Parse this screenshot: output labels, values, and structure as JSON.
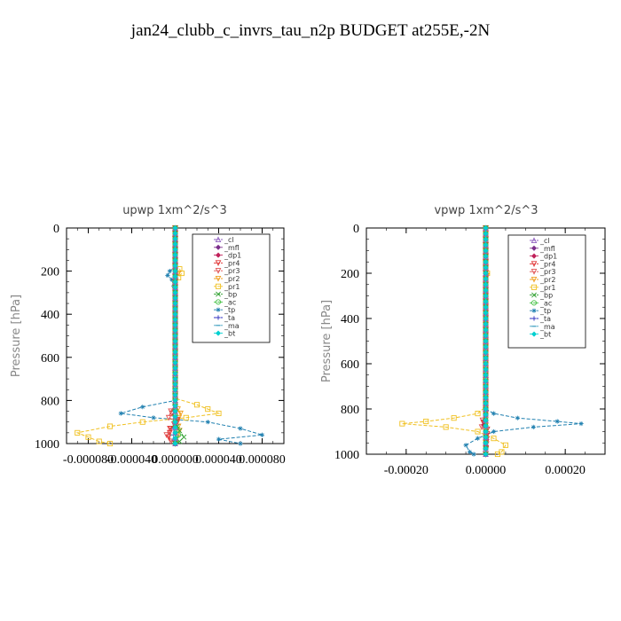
{
  "page": {
    "title": "jan24_clubb_c_invrs_tau_n2p  BUDGET at255E,-2N"
  },
  "legend_entries": [
    {
      "name": "_cl",
      "color": "#9060c0",
      "marker": "triangle"
    },
    {
      "name": "_mfl",
      "color": "#7b2d8b",
      "marker": "diamond"
    },
    {
      "name": "_dp1",
      "color": "#c0205a",
      "marker": "diamond"
    },
    {
      "name": "_pr4",
      "color": "#e03030",
      "marker": "triangle-down"
    },
    {
      "name": "_pr3",
      "color": "#e05050",
      "marker": "triangle-down"
    },
    {
      "name": "_pr2",
      "color": "#f0a020",
      "marker": "triangle-down"
    },
    {
      "name": "_pr1",
      "color": "#f0c020",
      "marker": "square"
    },
    {
      "name": "_bp",
      "color": "#30a030",
      "marker": "cross"
    },
    {
      "name": "_ac",
      "color": "#40c040",
      "marker": "circle"
    },
    {
      "name": "_tp",
      "color": "#2080b0",
      "marker": "star"
    },
    {
      "name": "_ta",
      "color": "#3030c0",
      "marker": "plus"
    },
    {
      "name": "_ma",
      "color": "#40a0c0",
      "marker": "dash"
    },
    {
      "name": "_bt",
      "color": "#00d0d0",
      "marker": "diamond"
    }
  ],
  "chart_data": [
    {
      "type": "line",
      "title": "upwp   1xm^2/s^3",
      "ylabel": "Pressure [hPa]",
      "xlabel": "",
      "xlim": [
        -0.0001,
        0.0001
      ],
      "ylim": [
        1000,
        0
      ],
      "xticks": [
        "-0.000080",
        "-0.000040",
        "0.000000",
        "0.000040",
        "0.000080"
      ],
      "xtick_values": [
        -8e-05,
        -4e-05,
        0,
        4e-05,
        8e-05
      ],
      "yticks": [
        "0",
        "200",
        "400",
        "600",
        "800",
        "1000"
      ],
      "ytick_values": [
        0,
        200,
        400,
        600,
        800,
        1000
      ],
      "legend": "top-right",
      "series": [
        {
          "name": "_tp",
          "points": [
            [
              0,
              0
            ],
            [
              0,
              180
            ],
            [
              -5e-06,
              200
            ],
            [
              -7e-06,
              220
            ],
            [
              -3e-06,
              240
            ],
            [
              0,
              300
            ],
            [
              0,
              780
            ],
            [
              0,
              800
            ],
            [
              -3e-05,
              830
            ],
            [
              -5e-05,
              860
            ],
            [
              -2e-05,
              880
            ],
            [
              3e-05,
              900
            ],
            [
              6e-05,
              930
            ],
            [
              8e-05,
              960
            ],
            [
              4e-05,
              980
            ],
            [
              6e-05,
              1000
            ]
          ]
        },
        {
          "name": "_pr1",
          "points": [
            [
              0,
              0
            ],
            [
              0,
              170
            ],
            [
              4e-06,
              190
            ],
            [
              6e-06,
              210
            ],
            [
              3e-06,
              230
            ],
            [
              0,
              260
            ],
            [
              0,
              790
            ],
            [
              2e-05,
              820
            ],
            [
              4e-05,
              860
            ],
            [
              1e-05,
              880
            ],
            [
              -3e-05,
              900
            ],
            [
              -6e-05,
              920
            ],
            [
              -9e-05,
              950
            ],
            [
              -8e-05,
              970
            ],
            [
              -7e-05,
              990
            ],
            [
              -6e-05,
              1000
            ]
          ]
        },
        {
          "name": "_pr2",
          "points": [
            [
              0,
              0
            ],
            [
              0,
              180
            ],
            [
              3e-06,
              210
            ],
            [
              0,
              240
            ],
            [
              0,
              820
            ],
            [
              5e-06,
              860
            ],
            [
              2e-06,
              900
            ],
            [
              4e-06,
              940
            ],
            [
              0,
              1000
            ]
          ]
        },
        {
          "name": "_pr3",
          "points": [
            [
              0,
              0
            ],
            [
              0,
              820
            ],
            [
              -4e-06,
              850
            ],
            [
              -6e-06,
              880
            ],
            [
              2e-06,
              900
            ],
            [
              -5e-06,
              930
            ],
            [
              -8e-06,
              960
            ],
            [
              -4e-06,
              990
            ],
            [
              0,
              1000
            ]
          ]
        },
        {
          "name": "_pr4",
          "points": [
            [
              0,
              0
            ],
            [
              0,
              830
            ],
            [
              -3e-06,
              860
            ],
            [
              2e-06,
              890
            ],
            [
              -4e-06,
              930
            ],
            [
              -6e-06,
              970
            ],
            [
              0,
              1000
            ]
          ]
        },
        {
          "name": "_bp",
          "points": [
            [
              0,
              0
            ],
            [
              0,
              900
            ],
            [
              4e-06,
              940
            ],
            [
              8e-06,
              970
            ],
            [
              4e-06,
              990
            ],
            [
              0,
              1000
            ]
          ]
        },
        {
          "name": "_ac",
          "points": [
            [
              0,
              0
            ],
            [
              0,
              920
            ],
            [
              3e-06,
              960
            ],
            [
              1e-06,
              990
            ],
            [
              0,
              1000
            ]
          ]
        },
        {
          "name": "_ma",
          "points": [
            [
              0,
              0
            ],
            [
              0,
              900
            ],
            [
              -2e-06,
              960
            ],
            [
              0,
              1000
            ]
          ]
        },
        {
          "name": "_ta",
          "points": [
            [
              0,
              0
            ],
            [
              0,
              1000
            ]
          ]
        },
        {
          "name": "_dp1",
          "points": [
            [
              0,
              0
            ],
            [
              0,
              1000
            ]
          ]
        },
        {
          "name": "_mfl",
          "points": [
            [
              0,
              0
            ],
            [
              0,
              1000
            ]
          ]
        },
        {
          "name": "_cl",
          "points": [
            [
              0,
              0
            ],
            [
              0,
              1000
            ]
          ]
        },
        {
          "name": "_bt",
          "points": [
            [
              0,
              0
            ],
            [
              0,
              1000
            ]
          ]
        }
      ]
    },
    {
      "type": "line",
      "title": "vpwp   1xm^2/s^3",
      "ylabel": "Pressure [hPa]",
      "xlabel": "",
      "xlim": [
        -0.0003,
        0.0003
      ],
      "ylim": [
        1000,
        0
      ],
      "xticks": [
        "-0.00020",
        "0.00000",
        "0.00020"
      ],
      "xtick_values": [
        -0.0002,
        0,
        0.0002
      ],
      "yticks": [
        "0",
        "200",
        "400",
        "600",
        "800",
        "1000"
      ],
      "ytick_values": [
        0,
        200,
        400,
        600,
        800,
        1000
      ],
      "legend": "top-right",
      "series": [
        {
          "name": "_tp",
          "points": [
            [
              0,
              0
            ],
            [
              0,
              780
            ],
            [
              0,
              800
            ],
            [
              2e-05,
              820
            ],
            [
              8e-05,
              840
            ],
            [
              0.00018,
              855
            ],
            [
              0.00024,
              865
            ],
            [
              0.00012,
              880
            ],
            [
              2e-05,
              900
            ],
            [
              -2e-05,
              930
            ],
            [
              -5e-05,
              960
            ],
            [
              -4e-05,
              990
            ],
            [
              -3e-05,
              1000
            ]
          ]
        },
        {
          "name": "_pr1",
          "points": [
            [
              0,
              0
            ],
            [
              0,
              180
            ],
            [
              4e-06,
              200
            ],
            [
              0,
              230
            ],
            [
              0,
              790
            ],
            [
              -2e-05,
              820
            ],
            [
              -8e-05,
              840
            ],
            [
              -0.00015,
              855
            ],
            [
              -0.00021,
              865
            ],
            [
              -0.0001,
              880
            ],
            [
              -2e-05,
              900
            ],
            [
              2e-05,
              930
            ],
            [
              5e-05,
              960
            ],
            [
              4e-05,
              990
            ],
            [
              3e-05,
              1000
            ]
          ]
        },
        {
          "name": "_pr2",
          "points": [
            [
              0,
              0
            ],
            [
              0,
              180
            ],
            [
              3e-06,
              210
            ],
            [
              0,
              240
            ],
            [
              0,
              1000
            ]
          ]
        },
        {
          "name": "_pr3",
          "points": [
            [
              0,
              0
            ],
            [
              0,
              820
            ],
            [
              -8e-06,
              850
            ],
            [
              -1e-05,
              880
            ],
            [
              4e-06,
              910
            ],
            [
              0,
              1000
            ]
          ]
        },
        {
          "name": "_pr4",
          "points": [
            [
              0,
              0
            ],
            [
              0,
              830
            ],
            [
              -6e-06,
              860
            ],
            [
              4e-06,
              890
            ],
            [
              0,
              1000
            ]
          ]
        },
        {
          "name": "_dp1",
          "points": [
            [
              0,
              0
            ],
            [
              0,
              830
            ],
            [
              -5e-06,
              870
            ],
            [
              0,
              900
            ],
            [
              0,
              1000
            ]
          ]
        },
        {
          "name": "_bp",
          "points": [
            [
              0,
              0
            ],
            [
              0,
              1000
            ]
          ]
        },
        {
          "name": "_ac",
          "points": [
            [
              0,
              0
            ],
            [
              0,
              1000
            ]
          ]
        },
        {
          "name": "_ma",
          "points": [
            [
              0,
              0
            ],
            [
              0,
              1000
            ]
          ]
        },
        {
          "name": "_ta",
          "points": [
            [
              0,
              0
            ],
            [
              0,
              1000
            ]
          ]
        },
        {
          "name": "_mfl",
          "points": [
            [
              0,
              0
            ],
            [
              0,
              1000
            ]
          ]
        },
        {
          "name": "_cl",
          "points": [
            [
              0,
              0
            ],
            [
              0,
              1000
            ]
          ]
        },
        {
          "name": "_bt",
          "points": [
            [
              0,
              0
            ],
            [
              0,
              1000
            ]
          ]
        }
      ]
    }
  ]
}
